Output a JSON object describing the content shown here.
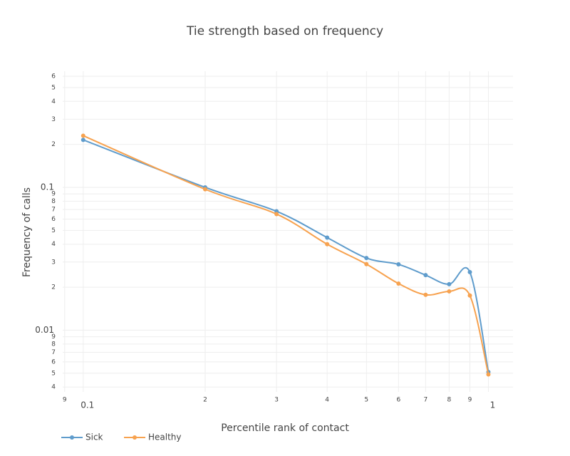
{
  "chart_data": {
    "type": "line",
    "title": "Tie strength based on frequency",
    "x_label": "Percentile rank of contact",
    "y_label": "Frequency of calls",
    "x_scale": "log",
    "y_scale": "log",
    "grid": true,
    "legend": "bottom-left",
    "x": [
      0.1,
      0.2,
      0.3,
      0.4,
      0.5,
      0.6,
      0.7,
      0.8,
      0.9,
      1.0
    ],
    "series": [
      {
        "name": "Sick",
        "color": "#5f9ccc",
        "values": [
          0.215,
          0.1,
          0.068,
          0.0445,
          0.032,
          0.0289,
          0.0243,
          0.021,
          0.0255,
          0.0051
        ]
      },
      {
        "name": "Healthy",
        "color": "#f7a24f",
        "values": [
          0.23,
          0.097,
          0.065,
          0.04,
          0.029,
          0.0212,
          0.0177,
          0.0187,
          0.0175,
          0.0049
        ]
      }
    ],
    "xlim": [
      0.089,
      1.15
    ],
    "ylim": [
      0.0037,
      0.65
    ],
    "xticks": [
      {
        "value": 0.09,
        "label": "9"
      },
      0.1,
      {
        "value": 0.2,
        "label": "2"
      },
      {
        "value": 0.3,
        "label": "3"
      },
      {
        "value": 0.4,
        "label": "4"
      },
      {
        "value": 0.5,
        "label": "5"
      },
      {
        "value": 0.6,
        "label": "6"
      },
      {
        "value": 0.7,
        "label": "7"
      },
      {
        "value": 0.8,
        "label": "8"
      },
      {
        "value": 0.9,
        "label": "9"
      },
      1
    ],
    "yticks": [
      {
        "value": 0.004,
        "label": "4"
      },
      {
        "value": 0.005,
        "label": "5"
      },
      {
        "value": 0.006,
        "label": "6"
      },
      {
        "value": 0.007,
        "label": "7"
      },
      {
        "value": 0.008,
        "label": "8"
      },
      {
        "value": 0.009,
        "label": "9"
      },
      0.01,
      {
        "value": 0.02,
        "label": "2"
      },
      {
        "value": 0.03,
        "label": "3"
      },
      {
        "value": 0.04,
        "label": "4"
      },
      {
        "value": 0.05,
        "label": "5"
      },
      {
        "value": 0.06,
        "label": "6"
      },
      {
        "value": 0.07,
        "label": "7"
      },
      {
        "value": 0.08,
        "label": "8"
      },
      {
        "value": 0.09,
        "label": "9"
      },
      0.1,
      {
        "value": 0.2,
        "label": "2"
      },
      {
        "value": 0.3,
        "label": "3"
      },
      {
        "value": 0.4,
        "label": "4"
      },
      {
        "value": 0.5,
        "label": "5"
      },
      {
        "value": 0.6,
        "label": "6"
      }
    ]
  }
}
